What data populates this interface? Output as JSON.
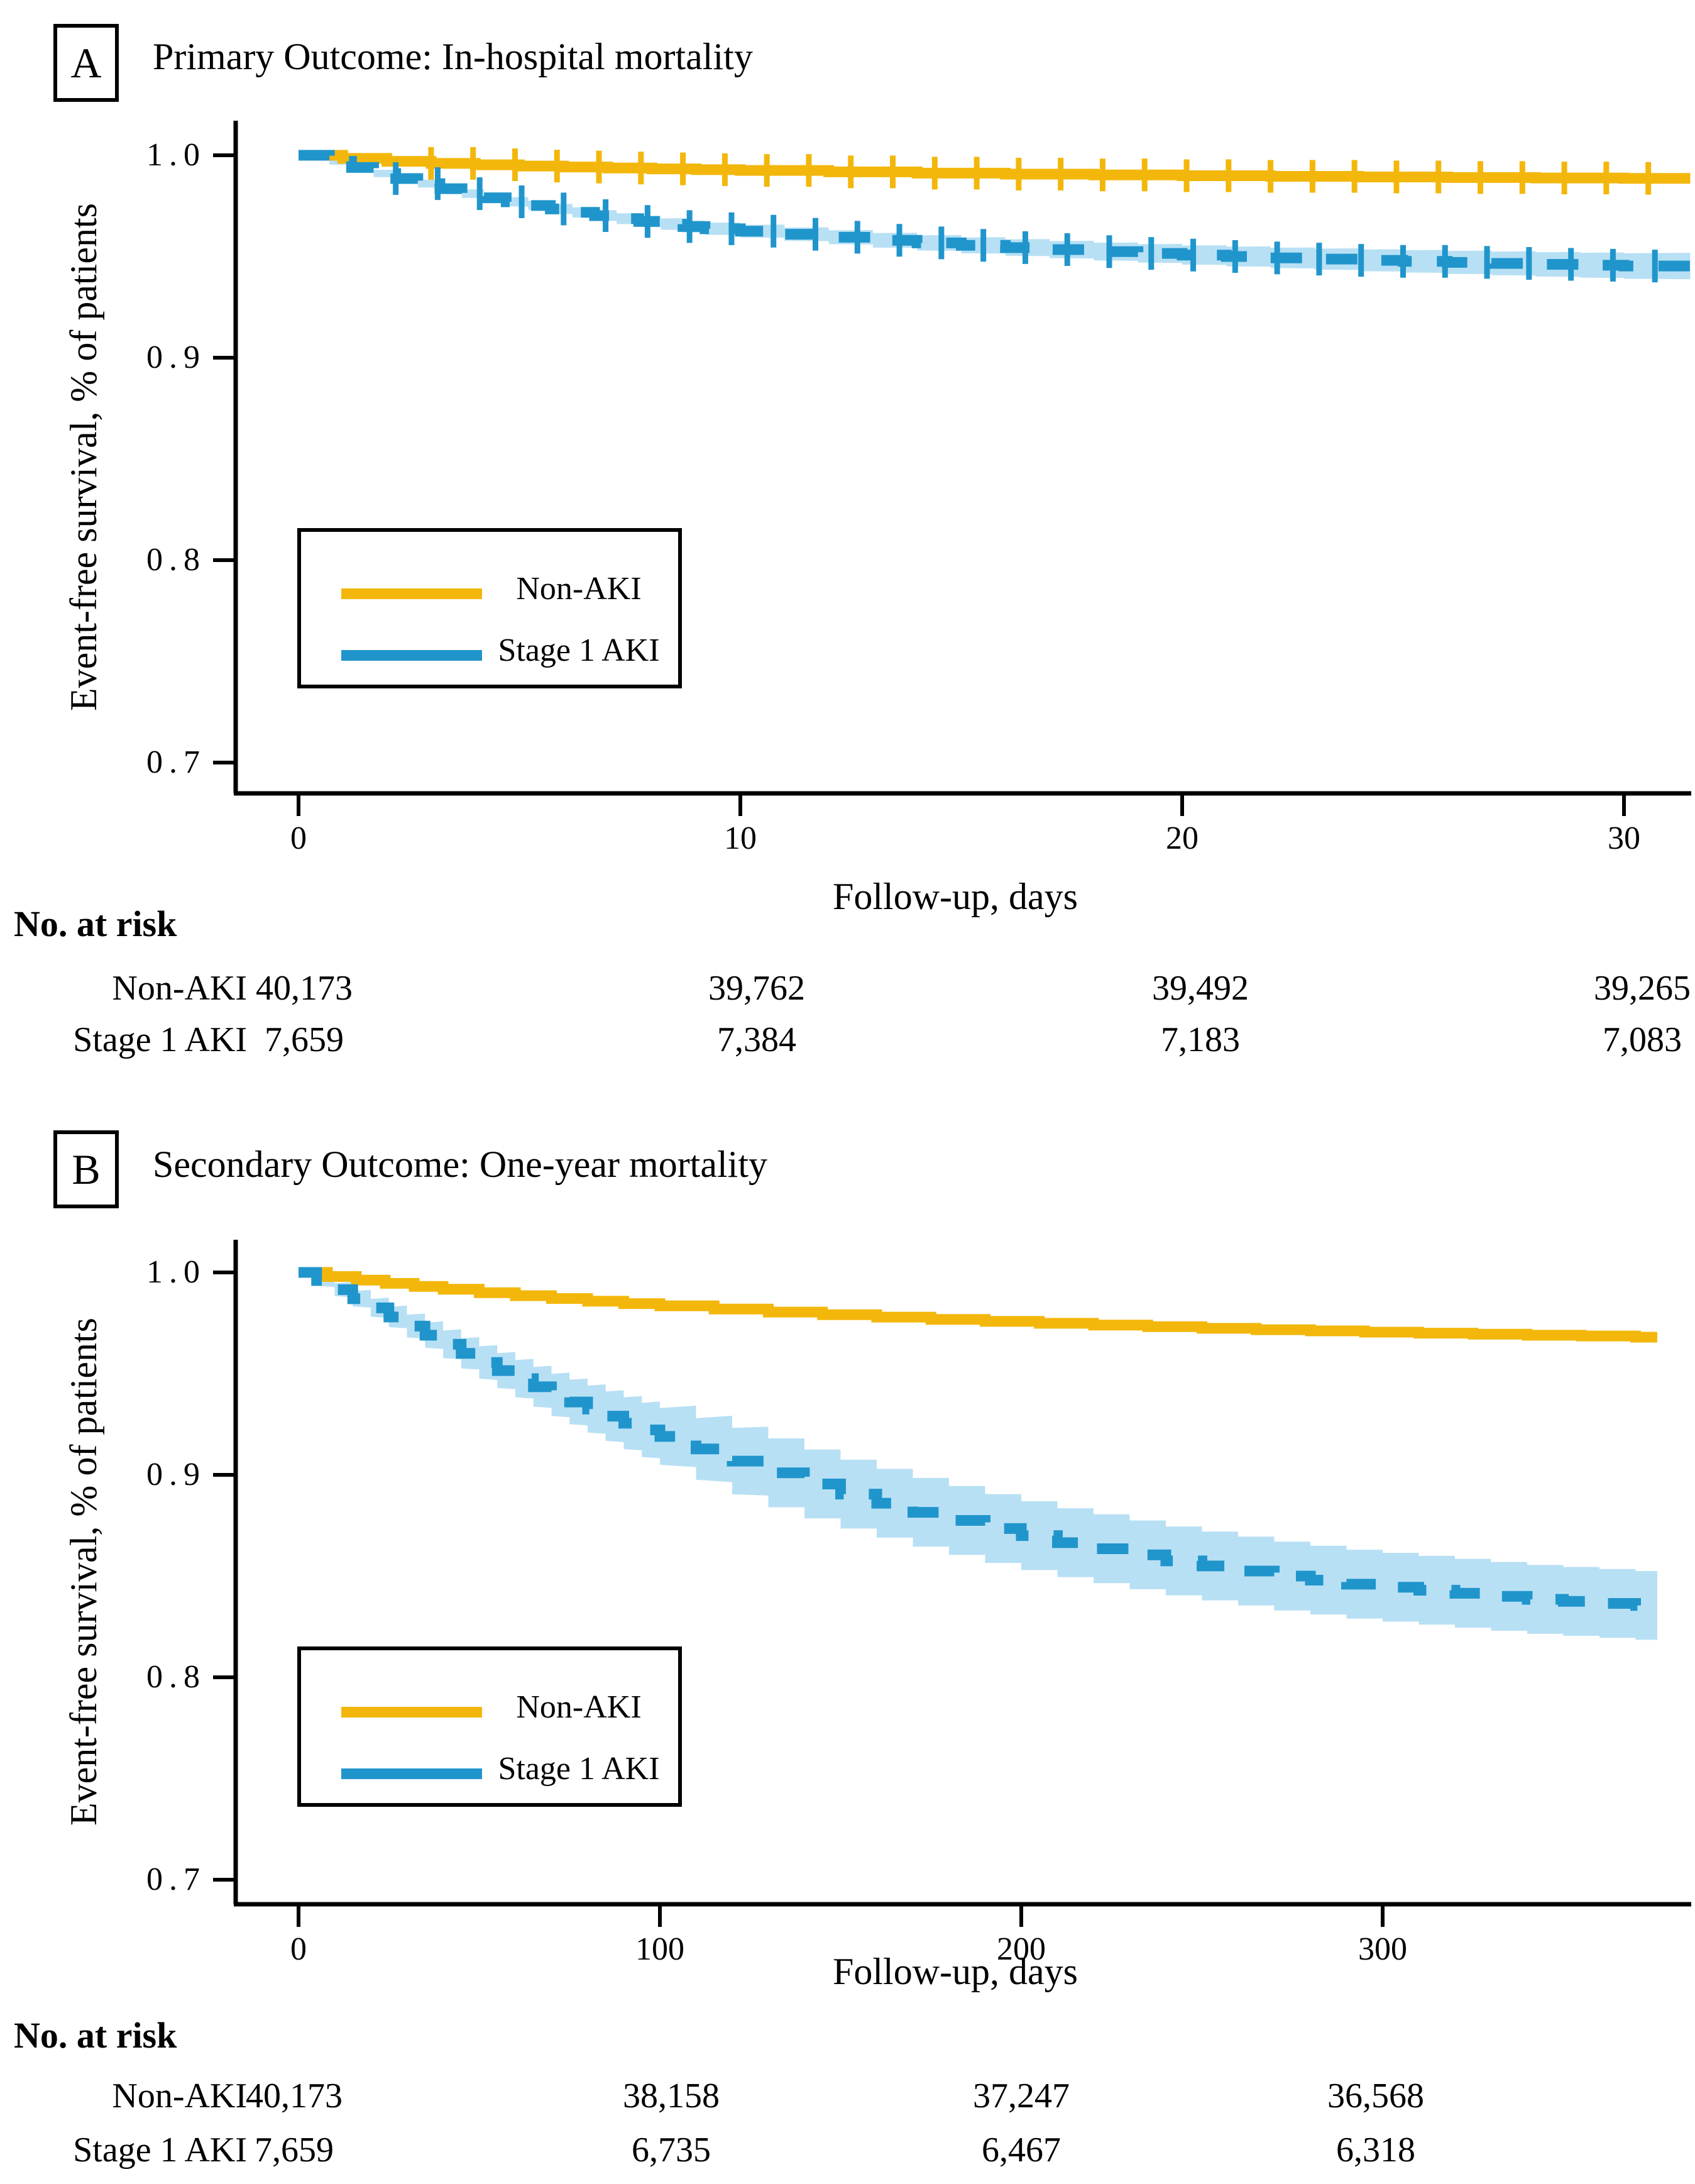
{
  "page": {
    "background": "#ffffff",
    "text_color": "#000000"
  },
  "figure": {
    "panels": [
      {
        "label": "A",
        "title": "Primary Outcome: In-hospital mortality",
        "ylabel": "Event-free survival, % of patients",
        "xlabel": "Follow-up, days",
        "ytick_labels": [
          "1.0",
          "0.9",
          "0.8",
          "0.7"
        ],
        "xtick_labels": [
          "0",
          "10",
          "20",
          "30"
        ],
        "legend": {
          "items": [
            {
              "label": "Non-AKI",
              "color": "#F3B70B"
            },
            {
              "label": "Stage 1 AKI",
              "color": "#2095CC"
            }
          ]
        },
        "risk_table": {
          "header": "No. at risk",
          "rows": [
            {
              "label": "Non-AKI",
              "values": [
                "40,173",
                "39,762",
                "39,492",
                "39,265"
              ]
            },
            {
              "label": "Stage 1 AKI",
              "values": [
                "7,659",
                "7,384",
                "7,183",
                "7,083"
              ]
            }
          ]
        }
      },
      {
        "label": "B",
        "title": "Secondary Outcome: One-year mortality",
        "ylabel": "Event-free survival, % of patients",
        "xlabel": "Follow-up, days",
        "ytick_labels": [
          "1.0",
          "0.9",
          "0.8",
          "0.7"
        ],
        "xtick_labels": [
          "0",
          "100",
          "200",
          "300"
        ],
        "legend": {
          "items": [
            {
              "label": "Non-AKI",
              "color": "#F3B70B"
            },
            {
              "label": "Stage 1 AKI",
              "color": "#2095CC"
            }
          ]
        },
        "risk_table": {
          "header": "No. at risk",
          "rows": [
            {
              "label": "Non-AKI",
              "values": [
                "40,173",
                "38,158",
                "37,247",
                "36,568"
              ]
            },
            {
              "label": "Stage 1 AKI",
              "values": [
                "7,659",
                "6,735",
                "6,467",
                "6,318"
              ]
            }
          ]
        }
      }
    ]
  },
  "chart_data": [
    {
      "type": "line",
      "subtype": "kaplan-meier-step",
      "title": "Primary Outcome: In-hospital mortality",
      "xlabel": "Follow-up, days",
      "ylabel": "Event-free survival, % of patients",
      "xlim": [
        0,
        31.5
      ],
      "ylim": [
        0.68,
        1.005
      ],
      "xticks": [
        0,
        10,
        20,
        30
      ],
      "yticks": [
        1.0,
        0.9,
        0.8,
        0.7
      ],
      "grid": false,
      "legend_position": "lower-left-inside",
      "series": [
        {
          "name": "Non-AKI",
          "color": "#F3B70B",
          "line_style": "solid",
          "xend": 31.5,
          "x": [
            0,
            1,
            2,
            3,
            4,
            5,
            6,
            7,
            8,
            9,
            10,
            12,
            14,
            16,
            18,
            20,
            22,
            24,
            26,
            28,
            30
          ],
          "y": [
            1.0,
            0.9985,
            0.997,
            0.996,
            0.9953,
            0.9947,
            0.9942,
            0.9937,
            0.9933,
            0.9929,
            0.9925,
            0.9918,
            0.9912,
            0.9907,
            0.9903,
            0.9899,
            0.9896,
            0.9893,
            0.989,
            0.9888,
            0.9886
          ],
          "censor_days": [
            3,
            3.95,
            4.9,
            5.85,
            6.8,
            7.75,
            8.7,
            9.65,
            10.6,
            11.55,
            12.5,
            13.45,
            14.4,
            15.35,
            16.3,
            17.25,
            18.2,
            19.15,
            20.1,
            21.05,
            22,
            22.95,
            23.9,
            24.85,
            25.8,
            26.75,
            27.7,
            28.65,
            29.6,
            30.55
          ]
        },
        {
          "name": "Stage 1 AKI",
          "color": "#2095CC",
          "line_style": "dashed",
          "band": {
            "color": "#B8E0F4",
            "base": 0.0015,
            "rate": 0.00016,
            "max": 0.0066
          },
          "xend": 31.5,
          "x": [
            0,
            0.7,
            1.2,
            1.7,
            2.2,
            2.7,
            3.2,
            3.7,
            4.2,
            4.7,
            5.2,
            5.7,
            6.2,
            6.7,
            7.2,
            7.7,
            8.2,
            8.7,
            9.2,
            10,
            11,
            12,
            13,
            14,
            15,
            16,
            17,
            18,
            19,
            20,
            21,
            22,
            23,
            24,
            25,
            26,
            27,
            28,
            29,
            30
          ],
          "y": [
            1.0,
            0.997,
            0.994,
            0.991,
            0.9885,
            0.986,
            0.9835,
            0.981,
            0.979,
            0.977,
            0.9752,
            0.9735,
            0.9718,
            0.9702,
            0.9687,
            0.9673,
            0.966,
            0.9648,
            0.9637,
            0.9625,
            0.961,
            0.9595,
            0.958,
            0.9567,
            0.9555,
            0.9544,
            0.9534,
            0.9524,
            0.9515,
            0.9507,
            0.95,
            0.9493,
            0.9487,
            0.9481,
            0.9476,
            0.9471,
            0.9466,
            0.9461,
            0.9457,
            0.9453
          ],
          "censor_days": [
            2.2,
            3.15,
            4.1,
            5.05,
            6,
            6.95,
            7.9,
            8.85,
            9.8,
            10.75,
            11.7,
            12.65,
            13.6,
            14.55,
            15.5,
            16.45,
            17.4,
            18.35,
            19.3,
            20.25,
            21.2,
            22.15,
            23.1,
            24.05,
            25,
            25.95,
            26.9,
            27.85,
            28.8,
            29.75,
            30.7
          ]
        }
      ]
    },
    {
      "type": "line",
      "subtype": "kaplan-meier-step",
      "title": "Secondary Outcome: One-year mortality",
      "xlabel": "Follow-up, days",
      "ylabel": "Event-free survival, % of patients",
      "xlim": [
        0,
        385
      ],
      "ylim": [
        0.68,
        1.005
      ],
      "xticks": [
        0,
        100,
        200,
        300
      ],
      "yticks": [
        1.0,
        0.9,
        0.8,
        0.7
      ],
      "grid": false,
      "legend_position": "lower-left-inside",
      "series": [
        {
          "name": "Non-AKI",
          "color": "#F3B70B",
          "line_style": "solid",
          "xend": 376,
          "x": [
            0,
            8,
            16,
            24,
            32,
            40,
            50,
            60,
            70,
            80,
            90,
            100,
            115,
            130,
            145,
            160,
            175,
            190,
            205,
            220,
            235,
            250,
            265,
            280,
            295,
            310,
            325,
            340,
            355,
            370
          ],
          "y": [
            1.0,
            0.998,
            0.9962,
            0.9946,
            0.9931,
            0.9917,
            0.99,
            0.9885,
            0.9871,
            0.9858,
            0.9846,
            0.9835,
            0.9819,
            0.9804,
            0.9791,
            0.9779,
            0.9768,
            0.9758,
            0.9749,
            0.974,
            0.9732,
            0.9724,
            0.9717,
            0.9711,
            0.9705,
            0.97,
            0.9695,
            0.969,
            0.9686,
            0.968
          ],
          "censor_days": []
        },
        {
          "name": "Stage 1 AKI",
          "color": "#2095CC",
          "line_style": "dashed",
          "band": {
            "color": "#B8E0F4",
            "base": 0.002,
            "rate": 0.00012,
            "max": 0.017
          },
          "xend": 376,
          "x": [
            0,
            5,
            10,
            15,
            20,
            25,
            30,
            35,
            40,
            45,
            50,
            55,
            60,
            65,
            70,
            75,
            80,
            85,
            90,
            95,
            100,
            110,
            120,
            130,
            140,
            150,
            160,
            170,
            180,
            190,
            200,
            210,
            220,
            230,
            240,
            250,
            260,
            270,
            280,
            290,
            300,
            310,
            320,
            330,
            340,
            350,
            360,
            370
          ],
          "y": [
            1.0,
            0.996,
            0.9915,
            0.987,
            0.9825,
            0.978,
            0.9735,
            0.969,
            0.9645,
            0.96,
            0.9555,
            0.9515,
            0.9475,
            0.9435,
            0.9395,
            0.936,
            0.9325,
            0.929,
            0.9255,
            0.9222,
            0.919,
            0.9128,
            0.9068,
            0.901,
            0.8955,
            0.8905,
            0.886,
            0.8815,
            0.8775,
            0.8735,
            0.87,
            0.8665,
            0.8635,
            0.8605,
            0.8575,
            0.855,
            0.8525,
            0.85,
            0.848,
            0.846,
            0.8445,
            0.843,
            0.8415,
            0.84,
            0.8385,
            0.8375,
            0.8365,
            0.8355
          ],
          "censor_days": []
        }
      ]
    }
  ]
}
